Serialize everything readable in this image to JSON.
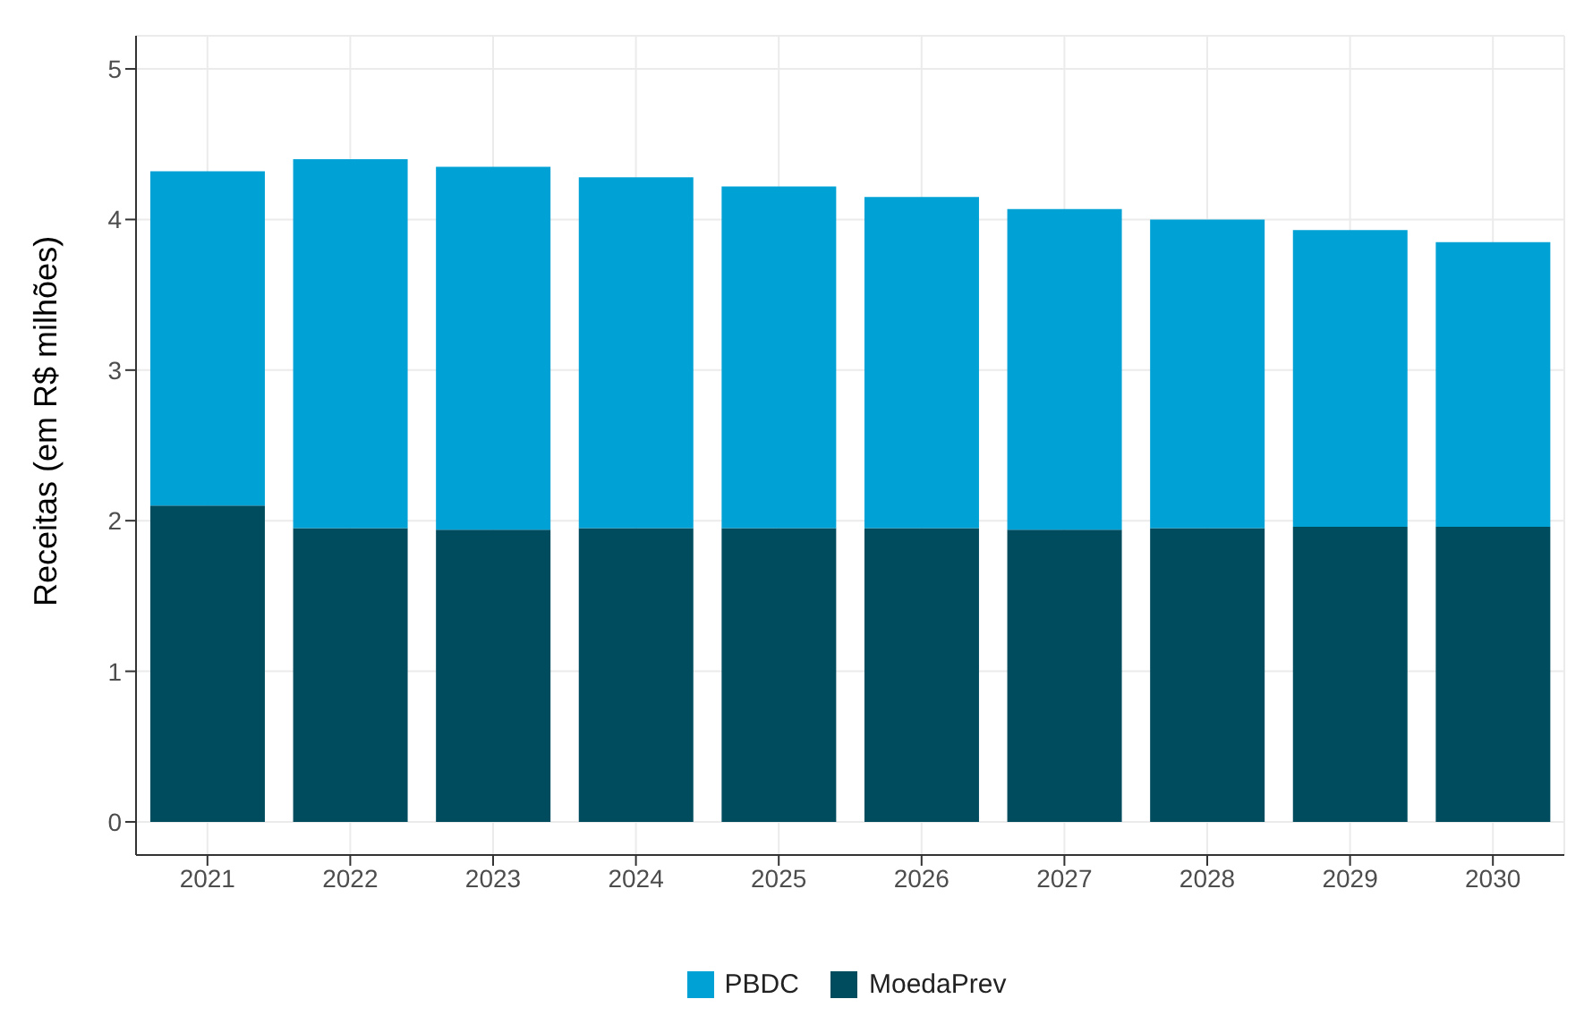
{
  "chart_data": {
    "type": "bar",
    "stacked": true,
    "ylabel": "Receitas (em R$ milhões)",
    "categories": [
      "2021",
      "2022",
      "2023",
      "2024",
      "2025",
      "2026",
      "2027",
      "2028",
      "2029",
      "2030"
    ],
    "series": [
      {
        "name": "MoedaPrev",
        "color": "#004c5f",
        "values": [
          2.1,
          1.95,
          1.94,
          1.95,
          1.95,
          1.95,
          1.94,
          1.95,
          1.96,
          1.96
        ]
      },
      {
        "name": "PBDC",
        "color": "#00a2d6",
        "values": [
          2.22,
          2.45,
          2.41,
          2.33,
          2.27,
          2.2,
          2.13,
          2.05,
          1.97,
          1.89
        ]
      }
    ],
    "ylim": [
      -0.22,
      5.22
    ],
    "yticks": [
      0,
      1,
      2,
      3,
      4,
      5
    ],
    "grid": true,
    "legend": "bottom"
  }
}
